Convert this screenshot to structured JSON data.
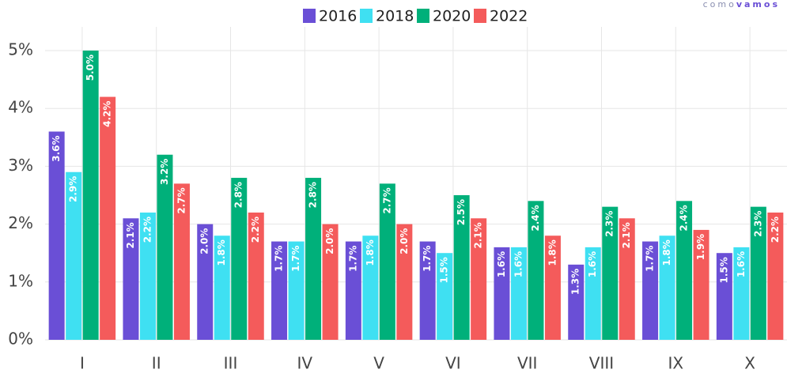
{
  "chart_data": {
    "type": "bar",
    "watermark": [
      "como",
      "vamos"
    ],
    "categories": [
      "I",
      "II",
      "III",
      "IV",
      "V",
      "VI",
      "VII",
      "VIII",
      "IX",
      "X"
    ],
    "series": [
      {
        "name": "2016",
        "color": "#6a4fd6",
        "values": [
          3.6,
          2.1,
          2.0,
          1.7,
          1.7,
          1.7,
          1.6,
          1.3,
          1.7,
          1.5
        ],
        "value_labels": [
          "3.6%",
          "2.1%",
          "2.0%",
          "1.7%",
          "1.7%",
          "1.7%",
          "1.6%",
          "1.3%",
          "1.7%",
          "1.5%"
        ]
      },
      {
        "name": "2018",
        "color": "#3fe0f2",
        "values": [
          2.9,
          2.2,
          1.8,
          1.7,
          1.8,
          1.5,
          1.6,
          1.6,
          1.8,
          1.6
        ],
        "value_labels": [
          "2.9%",
          "2.2%",
          "1.8%",
          "1.7%",
          "1.8%",
          "1.5%",
          "1.6%",
          "1.6%",
          "1.8%",
          "1.6%"
        ]
      },
      {
        "name": "2020",
        "color": "#00b07a",
        "values": [
          5.0,
          3.2,
          2.8,
          2.8,
          2.7,
          2.5,
          2.4,
          2.3,
          2.4,
          2.3
        ],
        "value_labels": [
          "5.0%",
          "3.2%",
          "2.8%",
          "2.8%",
          "2.7%",
          "2.5%",
          "2.4%",
          "2.3%",
          "2.4%",
          "2.3%"
        ]
      },
      {
        "name": "2022",
        "color": "#f45b5b",
        "values": [
          4.2,
          2.7,
          2.2,
          2.0,
          2.0,
          2.1,
          1.8,
          2.1,
          1.9,
          2.2
        ],
        "value_labels": [
          "4.2%",
          "2.7%",
          "2.2%",
          "2.0%",
          "2.0%",
          "2.1%",
          "1.8%",
          "2.1%",
          "1.9%",
          "2.2%"
        ]
      }
    ],
    "ylim": [
      0,
      5
    ],
    "yticks": [
      {
        "value": 0,
        "label": "0%"
      },
      {
        "value": 1,
        "label": "1%"
      },
      {
        "value": 2,
        "label": "2%"
      },
      {
        "value": 3,
        "label": "3%"
      },
      {
        "value": 4,
        "label": "4%"
      },
      {
        "value": 5,
        "label": "5%"
      }
    ],
    "grid": true,
    "legend": "top"
  }
}
